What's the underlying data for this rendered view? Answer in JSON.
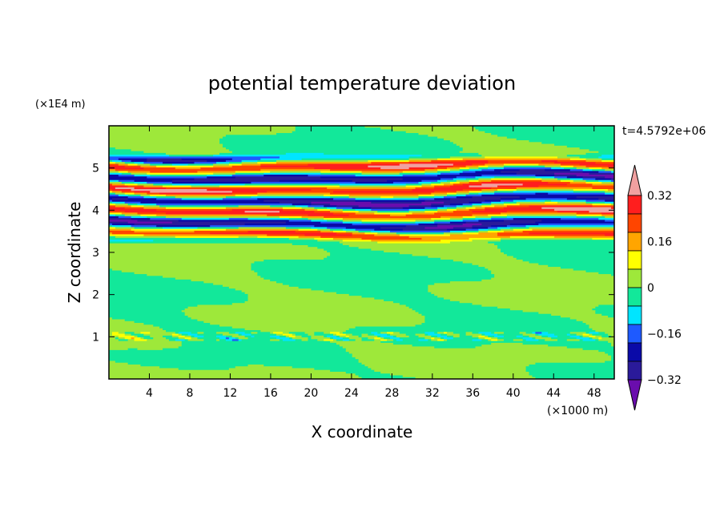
{
  "chart_data": {
    "type": "heatmap",
    "title": "potential temperature deviation",
    "xlabel": "X coordinate",
    "ylabel": "Z coordinate",
    "x_unit": "(×1000 m)",
    "y_unit": "(×1E4 m)",
    "time_label": "t=4.5792e+06",
    "xlim": [
      0,
      50
    ],
    "ylim": [
      0,
      6
    ],
    "x_ticks": [
      "4",
      "8",
      "12",
      "16",
      "20",
      "24",
      "28",
      "32",
      "36",
      "40",
      "44",
      "48"
    ],
    "y_ticks": [
      "1",
      "2",
      "3",
      "4",
      "5"
    ],
    "colorbar": {
      "tick_labels": [
        "0.32",
        "0.16",
        "0",
        "−0.16",
        "−0.32"
      ],
      "tick_values": [
        0.32,
        0.16,
        0,
        -0.16,
        -0.32
      ],
      "levels": [
        -0.4,
        -0.32,
        -0.24,
        -0.16,
        -0.08,
        0,
        0.08,
        0.16,
        0.24,
        0.32,
        0.4
      ],
      "colors": [
        "#6a0dad",
        "#2a1a9a",
        "#0a0aa8",
        "#1e5aff",
        "#00e5ff",
        "#12e89a",
        "#9ee83a",
        "#ffff00",
        "#ffa500",
        "#ff4500",
        "#ff1e1e",
        "#f0a0a0"
      ],
      "extend": "both"
    },
    "fields": [
      {
        "description": "stratified band of alternating positive and negative deviations",
        "z_range": [
          3.2,
          5.3
        ],
        "value_range": [
          -0.4,
          0.4
        ]
      },
      {
        "description": "weak deviations near neutral",
        "z_range": [
          0,
          3.2
        ],
        "value_range": [
          -0.08,
          0.08
        ]
      },
      {
        "description": "thin noisy layer",
        "z_range": [
          0.9,
          1.1
        ],
        "value_range": [
          -0.3,
          0.24
        ]
      },
      {
        "description": "quiet layer near top",
        "z_range": [
          5.3,
          6.0
        ],
        "value_range": [
          -0.08,
          0.08
        ]
      }
    ],
    "grid": false,
    "legend": "right colorbar"
  }
}
